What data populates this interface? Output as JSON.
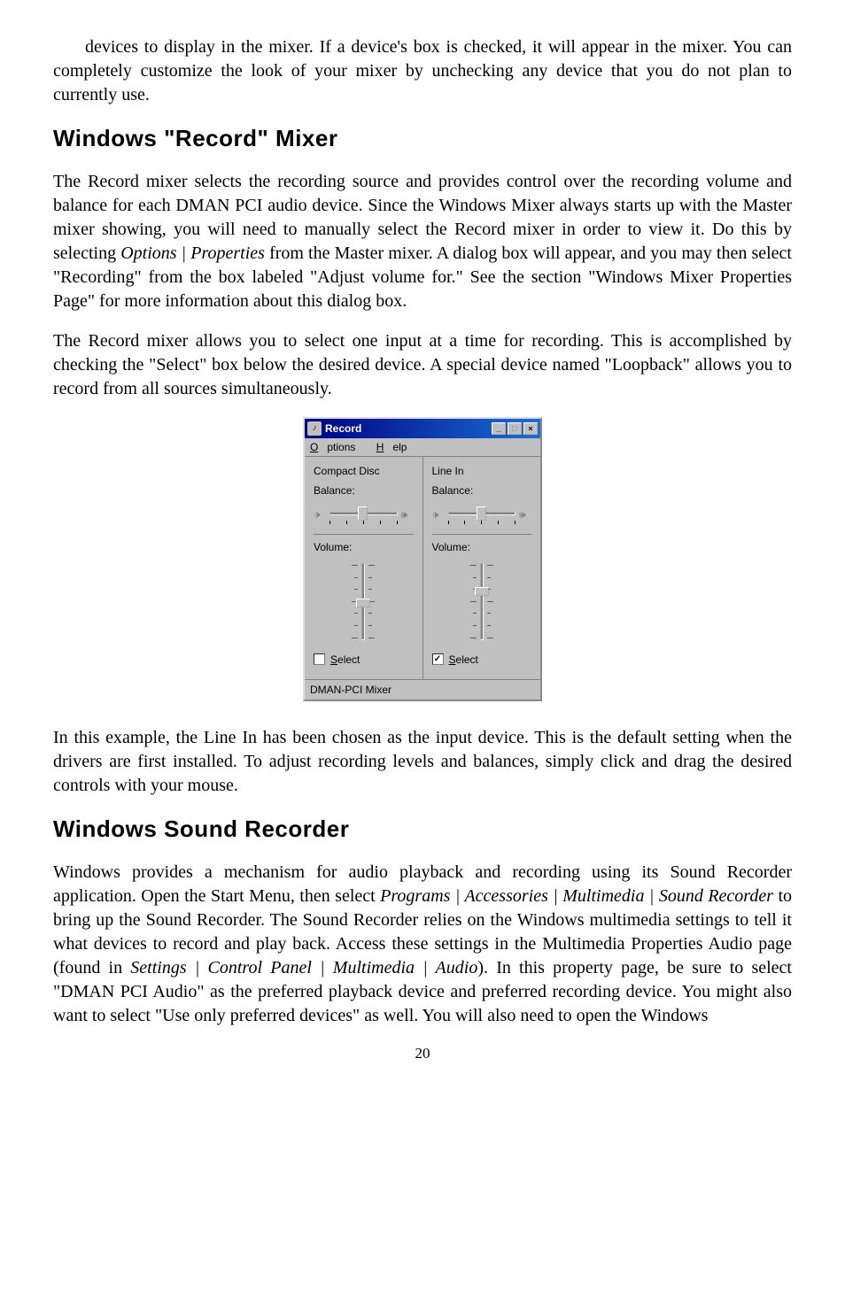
{
  "p1": "devices to display in the mixer.  If a device's box is checked, it will appear in the mixer.  You can completely customize the look of your mixer by unchecking any device that you do not plan to currently use.",
  "h1": "Windows \"Record\" Mixer",
  "p2a": "The Record mixer selects the recording source and provides control over the recording volume and balance for each DMAN PCI audio device.  Since the Windows Mixer always starts up with the Master mixer showing, you will need to manually select the Record mixer in order to view it.  Do this by selecting ",
  "p2i": "Options | Properties",
  "p2b": " from the Master mixer.  A dialog box will appear, and you may then select \"Recording\" from the box labeled \"Adjust volume for.\"  See the section \"Windows Mixer Properties Page\" for more information about this dialog box.",
  "p3": "The Record mixer allows you to select one input at a time for recording.  This is accomplished by checking the \"Select\" box below the desired device.  A special device named \"Loopback\" allows you to record from all sources simultaneously.",
  "mixer": {
    "title": "Record",
    "menu_options": "ptions",
    "menu_help": "elp",
    "channels": [
      {
        "name": "Compact Disc",
        "balance_label": "Balance:",
        "volume_label": "Volume:",
        "select_label": "elect",
        "checked": false,
        "v_thumb_top": "46%"
      },
      {
        "name": "Line In",
        "balance_label": "Balance:",
        "volume_label": "Volume:",
        "select_label": "elect",
        "checked": true,
        "v_thumb_top": "33%"
      }
    ],
    "status": "DMAN-PCI Mixer"
  },
  "p4": "In this example, the Line In has been chosen as the input device.  This is the default setting when the drivers are first installed.  To adjust recording levels and balances, simply click and drag the desired controls with your mouse.",
  "h2": "Windows Sound Recorder",
  "p5a": "Windows provides a mechanism for audio playback and recording using its Sound Recorder application.  Open the Start Menu, then select ",
  "p5i1": "Programs | Accessories | Multimedia | Sound Recorder",
  "p5b": " to bring up the Sound Recorder.  The Sound Recorder relies on the Windows multimedia settings to tell it what devices to record and play back.  Access these settings in the Multimedia Properties Audio page (found in  ",
  "p5i2": "Settings | Control Panel | Multimedia | Audio",
  "p5c": ").  In this property page, be sure to select \"DMAN PCI Audio\" as the preferred playback device and preferred recording device.  You might also want to select \"Use only preferred devices\" as well.  You will also need to open the Windows",
  "page_number": "20"
}
